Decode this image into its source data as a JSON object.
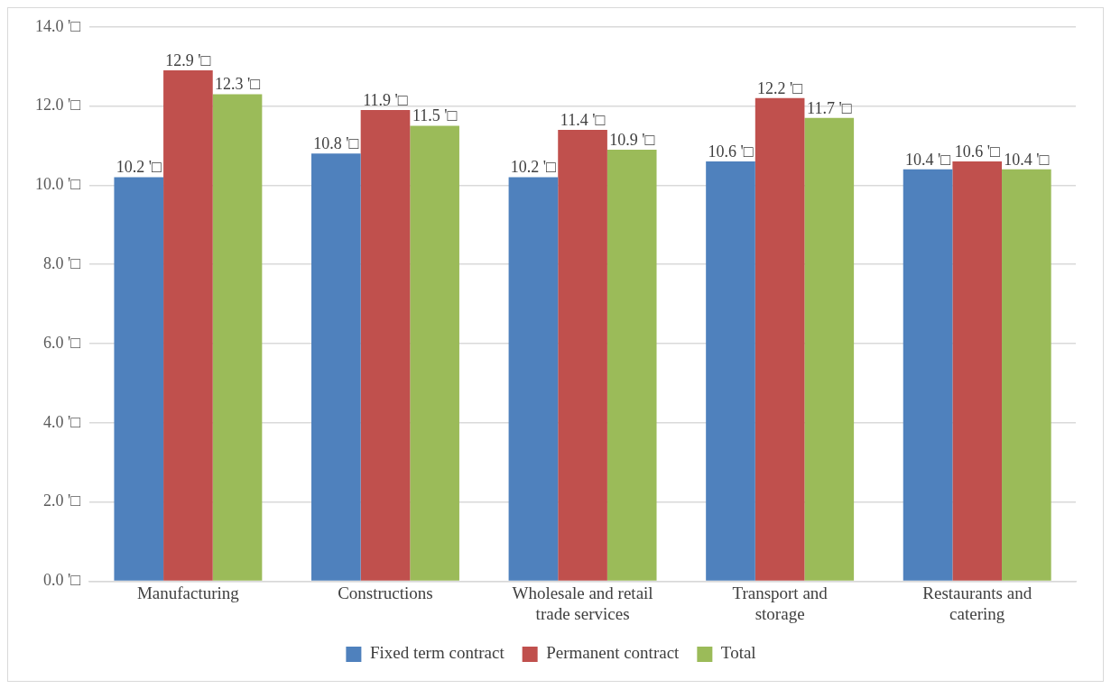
{
  "chart_data": {
    "type": "bar",
    "categories": [
      "Manufacturing",
      "Constructions",
      "Wholesale and retail trade services",
      "Transport and storage",
      "Restaurants and catering"
    ],
    "series": [
      {
        "name": "Fixed term contract",
        "color": "#4f81bd",
        "values": [
          10.2,
          10.8,
          10.2,
          10.6,
          10.4
        ],
        "value_labels": [
          "10.2 '□",
          "10.8 '□",
          "10.2 '□",
          "10.6 '□",
          "10.4 '□"
        ]
      },
      {
        "name": "Permanent contract",
        "color": "#c0504d",
        "values": [
          12.9,
          11.9,
          11.4,
          12.2,
          10.6
        ],
        "value_labels": [
          "12.9 '□",
          "11.9 '□",
          "11.4 '□",
          "12.2 '□",
          "10.6 '□"
        ]
      },
      {
        "name": "Total",
        "color": "#9bbb59",
        "values": [
          12.3,
          11.5,
          10.9,
          11.7,
          10.4
        ],
        "value_labels": [
          "12.3 '□",
          "11.5 '□",
          "10.9 '□",
          "11.7 '□",
          "10.4 '□"
        ]
      }
    ],
    "ylim": [
      0,
      14
    ],
    "yticks": [
      {
        "value": 0,
        "label": "0.0 '□"
      },
      {
        "value": 2,
        "label": "2.0 '□"
      },
      {
        "value": 4,
        "label": "4.0 '□"
      },
      {
        "value": 6,
        "label": "6.0 '□"
      },
      {
        "value": 8,
        "label": "8.0 '□"
      },
      {
        "value": 10,
        "label": "10.0 '□"
      },
      {
        "value": 12,
        "label": "12.0 '□"
      },
      {
        "value": 14,
        "label": "14.0 '□"
      }
    ],
    "grid": "y",
    "legend": "bottom"
  }
}
